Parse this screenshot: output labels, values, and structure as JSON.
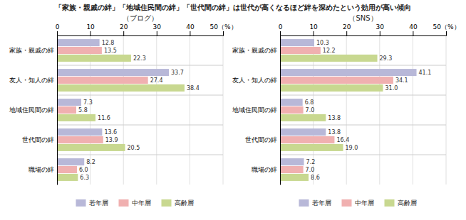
{
  "chart_data": [
    {
      "type": "bar",
      "orientation": "horizontal",
      "title": "「家族・親戚の絆」「地域住民間の絆」「世代間の絆」は世代が高くなるほど絆を深めたという効用が高い傾向",
      "subtitle": "（ブログ）",
      "categories": [
        "家族・親戚の絆",
        "友人・知人の絆",
        "地域住民間の絆",
        "世代間の絆",
        "職場の絆"
      ],
      "series": [
        {
          "name": "若年層",
          "color": "#b8b8d8",
          "values": [
            12.8,
            33.7,
            7.3,
            13.6,
            8.2
          ],
          "value_labels": [
            "12.8",
            "33.7",
            "7.3",
            "13.6",
            "8.2"
          ]
        },
        {
          "name": "中年層",
          "color": "#f0b0b0",
          "values": [
            13.5,
            27.4,
            5.8,
            13.9,
            6.0
          ],
          "value_labels": [
            "13.5",
            "27.4",
            "5.8",
            "13.9",
            "6.0"
          ]
        },
        {
          "name": "高齢層",
          "color": "#c8d890",
          "values": [
            22.3,
            38.4,
            11.6,
            20.5,
            6.3
          ],
          "value_labels": [
            "22.3",
            "38.4",
            "11.6",
            "20.5",
            "6.3"
          ]
        }
      ],
      "xlim": [
        0,
        50
      ],
      "xticks": [
        0,
        10,
        20,
        30,
        40,
        {
          "value": 50,
          "label": "50（%）"
        }
      ],
      "grid": true,
      "data_labels": true,
      "legend": "bottom"
    },
    {
      "type": "bar",
      "orientation": "horizontal",
      "subtitle": "（SNS）",
      "categories": [
        "家族・親戚の絆",
        "友人・知人の絆",
        "地域住民間の絆",
        "世代間の絆",
        "職場の絆"
      ],
      "series": [
        {
          "name": "若年層",
          "color": "#b8b8d8",
          "values": [
            10.3,
            41.1,
            6.8,
            13.8,
            7.2
          ],
          "value_labels": [
            "10.3",
            "41.1",
            "6.8",
            "13.8",
            "7.2"
          ]
        },
        {
          "name": "中年層",
          "color": "#f0b0b0",
          "values": [
            12.2,
            34.1,
            7.0,
            16.4,
            7.0
          ],
          "value_labels": [
            "12.2",
            "34.1",
            "7.0",
            "16.4",
            "7.0"
          ]
        },
        {
          "name": "高齢層",
          "color": "#c8d890",
          "values": [
            29.3,
            31.0,
            13.8,
            19.0,
            8.6
          ],
          "value_labels": [
            "29.3",
            "31.0",
            "13.8",
            "19.0",
            "8.6"
          ]
        }
      ],
      "xlim": [
        0,
        50
      ],
      "xticks": [
        0,
        10,
        20,
        30,
        40,
        {
          "value": 50,
          "label": "50（%）"
        }
      ],
      "grid": true,
      "data_labels": true,
      "legend": "bottom"
    }
  ]
}
